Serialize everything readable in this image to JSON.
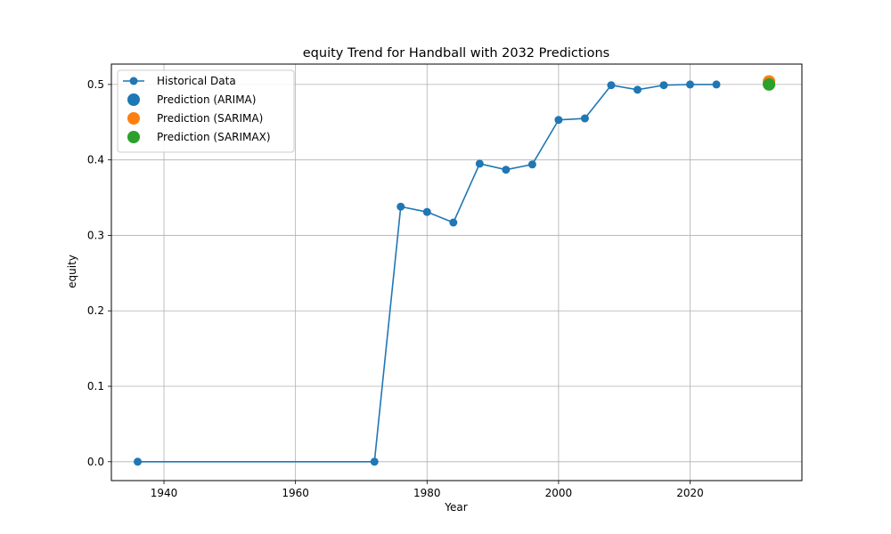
{
  "chart_data": {
    "type": "line",
    "title": "equity Trend for Handball with 2032 Predictions",
    "xlabel": "Year",
    "ylabel": "equity",
    "xlim": [
      1932,
      2037
    ],
    "ylim": [
      -0.025,
      0.527
    ],
    "xticks": [
      1940,
      1960,
      1980,
      2000,
      2020
    ],
    "yticks": [
      0.0,
      0.1,
      0.2,
      0.3,
      0.4,
      0.5
    ],
    "grid": true,
    "legend_position": "top-left",
    "series": [
      {
        "name": "Historical Data",
        "kind": "line-marker",
        "color": "#1f77b4",
        "x": [
          1936,
          1972,
          1976,
          1980,
          1984,
          1988,
          1992,
          1996,
          2000,
          2004,
          2008,
          2012,
          2016,
          2020,
          2024
        ],
        "y": [
          0.0,
          0.0,
          0.338,
          0.331,
          0.317,
          0.395,
          0.387,
          0.394,
          0.453,
          0.455,
          0.499,
          0.493,
          0.499,
          0.5,
          0.5
        ]
      },
      {
        "name": "Prediction (ARIMA)",
        "kind": "point",
        "color": "#1f77b4",
        "x": [
          2032
        ],
        "y": [
          0.501
        ]
      },
      {
        "name": "Prediction (SARIMA)",
        "kind": "point",
        "color": "#ff7f0e",
        "x": [
          2032
        ],
        "y": [
          0.504
        ]
      },
      {
        "name": "Prediction (SARIMAX)",
        "kind": "point",
        "color": "#2ca02c",
        "x": [
          2032
        ],
        "y": [
          0.5
        ]
      }
    ]
  }
}
